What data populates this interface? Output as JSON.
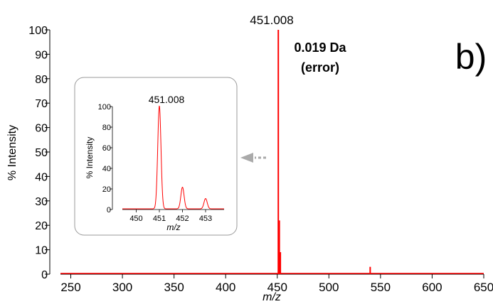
{
  "chart_data": [
    {
      "type": "line",
      "panel_label": "b)",
      "xlabel": "m/z",
      "ylabel": "% Intensity",
      "xlim": [
        240,
        650
      ],
      "ylim": [
        0,
        100
      ],
      "x_ticks": [
        250,
        300,
        350,
        400,
        450,
        500,
        550,
        600,
        650
      ],
      "y_ticks": [
        0,
        10,
        20,
        30,
        40,
        50,
        60,
        70,
        80,
        90,
        100
      ],
      "peak_label": "451.008",
      "annotation_lines": [
        "0.019 Da",
        "(error)"
      ],
      "series": [
        {
          "color": "#ff0000",
          "points": [
            {
              "x": 451.0,
              "y": 100
            },
            {
              "x": 452.0,
              "y": 22
            },
            {
              "x": 453.0,
              "y": 9
            },
            {
              "x": 540.0,
              "y": 3
            }
          ]
        }
      ]
    },
    {
      "type": "line",
      "role": "inset",
      "xlabel": "m/z",
      "ylabel": "% Intensity",
      "xlim": [
        449.4,
        453.8
      ],
      "ylim": [
        0,
        100
      ],
      "x_ticks": [
        450,
        451,
        452,
        453
      ],
      "y_ticks": [
        0,
        20,
        40,
        60,
        80,
        100
      ],
      "peak_label": "451.008",
      "series": [
        {
          "color": "#ff0000",
          "peaks": [
            {
              "x": 451.0,
              "y": 100
            },
            {
              "x": 452.0,
              "y": 21
            },
            {
              "x": 453.0,
              "y": 10
            }
          ]
        }
      ]
    }
  ],
  "colors": {
    "series": "#ff0000",
    "arrow": "#aaaaaa",
    "inset_border": "#999999"
  }
}
